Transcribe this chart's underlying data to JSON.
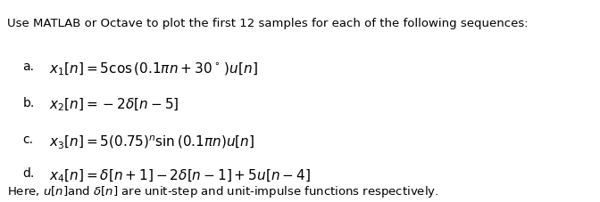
{
  "title_line": "Use MATLAB or Octave to plot the first 12 samples for each of the following sequences:",
  "items": [
    {
      "label": "a.",
      "math": "$x_1[n]=5\\mathrm{cos}\\,(0.1\\pi n+30^\\circ\\,)u[n]$"
    },
    {
      "label": "b.",
      "math": "$x_2[n]=-2\\delta[n-5]$"
    },
    {
      "label": "c.",
      "math": "$x_3[n]=5(0.75)^n\\mathrm{sin}\\,(0.1\\pi n)u[n]$"
    },
    {
      "label": "d.",
      "math": "$x_4[n]=\\delta[n+1]-2\\delta[n-1]+5u[n-4]$"
    }
  ],
  "footer_plain": "Here, ",
  "footer_math1": "$u\\left[n\\right]$",
  "footer_mid": "and ",
  "footer_math2": "$\\delta\\left[n\\right]$",
  "footer_end": " are unit-step and unit-impulse functions respectively.",
  "bg_color": "#ffffff",
  "text_color": "#000000",
  "title_fontsize": 9.5,
  "item_label_fontsize": 10,
  "item_math_fontsize": 11,
  "footer_fontsize": 9.5,
  "fig_width": 6.72,
  "fig_height": 2.27,
  "dpi": 100
}
